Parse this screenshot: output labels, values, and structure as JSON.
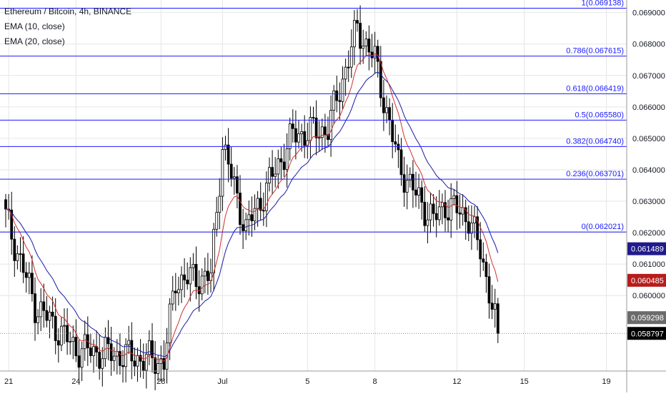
{
  "chart_data": {
    "type": "candlestick",
    "title": "Ethereum / Bitcoin, 4h, BINANCE",
    "indicators": [
      "EMA (10, close)",
      "EMA (20, close)"
    ],
    "ylim": [
      0.0576,
      0.0694
    ],
    "xlim_bars": [
      0,
      205
    ],
    "y_ticks": [
      "0.069000",
      "0.068000",
      "0.067000",
      "0.066000",
      "0.065000",
      "0.064000",
      "0.063000",
      "0.062000",
      "0.061000",
      "0.060000"
    ],
    "x_ticks": [
      {
        "label": "21",
        "bar": 1
      },
      {
        "label": "24",
        "bar": 24
      },
      {
        "label": "28",
        "bar": 53
      },
      {
        "label": "Jul",
        "bar": 74
      },
      {
        "label": "5",
        "bar": 103
      },
      {
        "label": "8",
        "bar": 126
      },
      {
        "label": "12",
        "bar": 154
      },
      {
        "label": "15",
        "bar": 177
      },
      {
        "label": "19",
        "bar": 205
      }
    ],
    "fib_levels": [
      {
        "label": "1(0.069138)",
        "value": 0.069138
      },
      {
        "label": "0.786(0.067615)",
        "value": 0.067615
      },
      {
        "label": "0.618(0.066419)",
        "value": 0.066419
      },
      {
        "label": "0.5(0.065580)",
        "value": 0.06558
      },
      {
        "label": "0.382(0.064740)",
        "value": 0.06474
      },
      {
        "label": "0.236(0.063701)",
        "value": 0.063701
      },
      {
        "label": "0(0.062021)",
        "value": 0.062021
      }
    ],
    "price_badges": [
      {
        "label": "0.061489",
        "value": 0.061489,
        "color": "#1f1a8c"
      },
      {
        "label": "0.060485",
        "value": 0.060485,
        "color": "#b71c1c"
      },
      {
        "label": "0.059298",
        "value": 0.059298,
        "color": "#6b6b6b"
      },
      {
        "label": "0.058797",
        "value": 0.058797,
        "color": "#000000"
      }
    ],
    "last_price": 0.058797,
    "key_closes": [
      {
        "bar": 0,
        "close": 0.0625
      },
      {
        "bar": 10,
        "close": 0.0597
      },
      {
        "bar": 24,
        "close": 0.0583
      },
      {
        "bar": 54,
        "close": 0.0579
      },
      {
        "bar": 58,
        "close": 0.0605
      },
      {
        "bar": 70,
        "close": 0.0606
      },
      {
        "bar": 74,
        "close": 0.0648
      },
      {
        "bar": 82,
        "close": 0.0621
      },
      {
        "bar": 98,
        "close": 0.0651
      },
      {
        "bar": 110,
        "close": 0.0653
      },
      {
        "bar": 120,
        "close": 0.0685
      },
      {
        "bar": 126,
        "close": 0.0675
      },
      {
        "bar": 134,
        "close": 0.0642
      },
      {
        "bar": 140,
        "close": 0.0632
      },
      {
        "bar": 146,
        "close": 0.0624
      },
      {
        "bar": 150,
        "close": 0.0629
      },
      {
        "bar": 158,
        "close": 0.0625
      },
      {
        "bar": 162,
        "close": 0.0614
      },
      {
        "bar": 165,
        "close": 0.0602
      },
      {
        "bar": 167,
        "close": 0.0592
      },
      {
        "bar": 168,
        "close": 0.0588
      }
    ],
    "colors": {
      "fib_line": "#1a1aff",
      "ema10": "#d32f2f",
      "ema20": "#1a1aa8",
      "bull": "#ffffff",
      "bear": "#000000",
      "grid": "#e6e6e6"
    }
  }
}
